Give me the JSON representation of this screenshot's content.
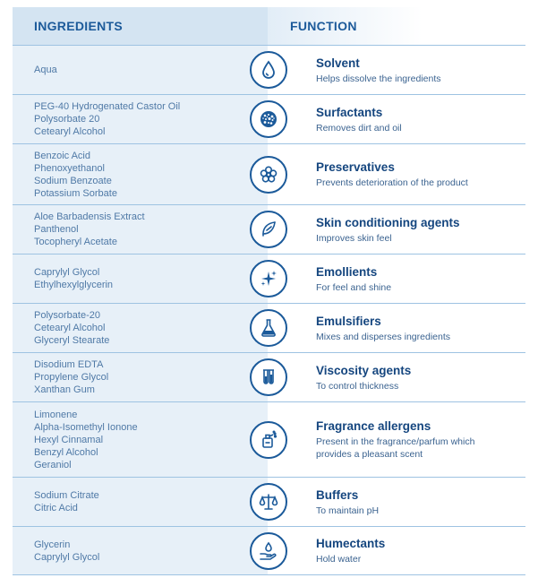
{
  "header": {
    "ingredients": "INGREDIENTS",
    "function": "FUNCTION"
  },
  "rows": [
    {
      "ingredients": [
        "Aqua"
      ],
      "title": "Solvent",
      "desc": "Helps dissolve the ingredients",
      "icon": "water-drop-icon"
    },
    {
      "ingredients": [
        "PEG-40 Hydrogenated Castor Oil",
        "Polysorbate 20",
        "Cetearyl Alcohol"
      ],
      "title": "Surfactants",
      "desc": "Removes dirt and oil",
      "icon": "foam-icon"
    },
    {
      "ingredients": [
        "Benzoic Acid",
        "Phenoxyethanol",
        "Sodium Benzoate",
        "Potassium Sorbate"
      ],
      "title": "Preservatives",
      "desc": "Prevents deterioration of the product",
      "icon": "flower-icon"
    },
    {
      "ingredients": [
        "Aloe Barbadensis Extract",
        "Panthenol",
        "Tocopheryl Acetate"
      ],
      "title": "Skin conditioning agents",
      "desc": "Improves skin feel",
      "icon": "feather-icon"
    },
    {
      "ingredients": [
        "Caprylyl Glycol",
        "Ethylhexylglycerin"
      ],
      "title": "Emollients",
      "desc": "For feel and shine",
      "icon": "sparkle-icon"
    },
    {
      "ingredients": [
        "Polysorbate-20",
        "Cetearyl Alcohol",
        "Glyceryl Stearate"
      ],
      "title": "Emulsifiers",
      "desc": "Mixes and disperses ingredients",
      "icon": "flask-icon"
    },
    {
      "ingredients": [
        "Disodium EDTA",
        "Propylene Glycol",
        "Xanthan Gum"
      ],
      "title": "Viscosity agents",
      "desc": "To control thickness",
      "icon": "test-tubes-icon"
    },
    {
      "ingredients": [
        "Limonene",
        "Alpha-Isomethyl Ionone",
        "Hexyl Cinnamal",
        "Benzyl Alcohol",
        "Geraniol"
      ],
      "title": "Fragrance allergens",
      "desc": "Present in the fragrance/parfum which provides a pleasant scent",
      "icon": "perfume-bottle-icon"
    },
    {
      "ingredients": [
        "Sodium Citrate",
        "Citric Acid"
      ],
      "title": "Buffers",
      "desc": "To maintain pH",
      "icon": "scales-icon"
    },
    {
      "ingredients": [
        "Glycerin",
        "Caprylyl Glycol"
      ],
      "title": "Humectants",
      "desc": "Hold water",
      "icon": "hand-drop-icon"
    }
  ]
}
